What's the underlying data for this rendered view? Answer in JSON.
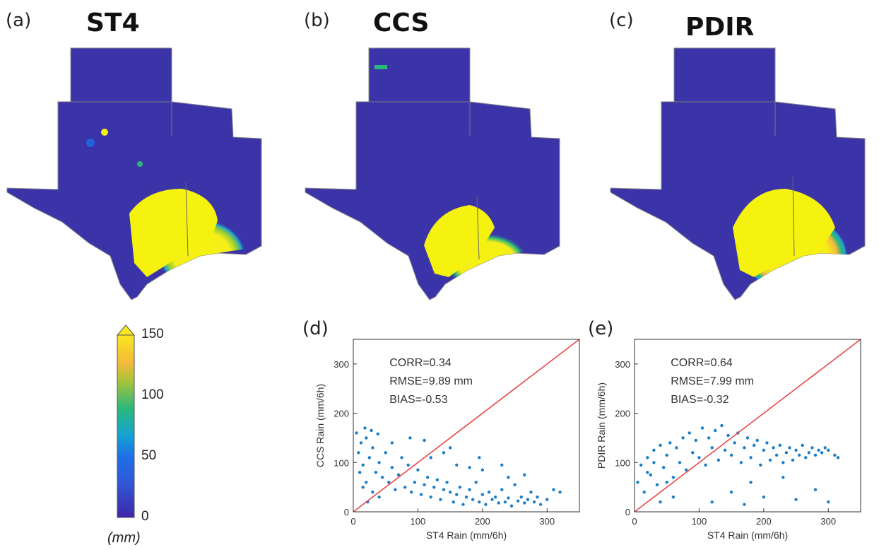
{
  "panels": {
    "a": {
      "letter": "(a)",
      "title": "ST4"
    },
    "b": {
      "letter": "(b)",
      "title": "CCS"
    },
    "c": {
      "letter": "(c)",
      "title": "PDIR"
    },
    "d": {
      "letter": "(d)"
    },
    "e": {
      "letter": "(e)"
    }
  },
  "colorbar": {
    "ticks": [
      "150",
      "100",
      "50",
      "0"
    ],
    "unit": "(mm)",
    "colors": [
      "#3e27a8",
      "#1f6ee8",
      "#14a3d4",
      "#2cb87a",
      "#a9c43a",
      "#f7b93a",
      "#f8e621"
    ]
  },
  "colors": {
    "scatter_point": "#1a7fc8",
    "reference_line": "#e8474a",
    "map_base": "#3b34a8",
    "map_heavy": "#f6f20f"
  },
  "chart_data": [
    {
      "type": "scatter",
      "panel": "(d)",
      "xlabel": "ST4 Rain (mm/6h)",
      "ylabel": "CCS Rain (mm/6h)",
      "xlim": [
        0,
        350
      ],
      "ylim": [
        0,
        350
      ],
      "xticks": [
        0,
        100,
        200,
        300
      ],
      "yticks": [
        0,
        100,
        200,
        300
      ],
      "tick_labels_x": [
        "0",
        "100",
        "200",
        "300"
      ],
      "tick_labels_y": [
        "0",
        "100",
        "200",
        "300"
      ],
      "annotations": [
        "CORR=0.34",
        "RMSE=9.89 mm",
        "BIAS=-0.53"
      ],
      "reference_line": {
        "x": [
          0,
          350
        ],
        "y": [
          0,
          350
        ]
      },
      "points": [
        [
          5,
          160
        ],
        [
          8,
          120
        ],
        [
          12,
          140
        ],
        [
          15,
          95
        ],
        [
          20,
          150
        ],
        [
          25,
          110
        ],
        [
          30,
          130
        ],
        [
          35,
          80
        ],
        [
          40,
          100
        ],
        [
          45,
          70
        ],
        [
          50,
          120
        ],
        [
          55,
          60
        ],
        [
          60,
          90
        ],
        [
          65,
          45
        ],
        [
          70,
          75
        ],
        [
          75,
          110
        ],
        [
          80,
          50
        ],
        [
          85,
          95
        ],
        [
          90,
          40
        ],
        [
          95,
          60
        ],
        [
          100,
          85
        ],
        [
          105,
          35
        ],
        [
          110,
          55
        ],
        [
          115,
          70
        ],
        [
          120,
          30
        ],
        [
          125,
          50
        ],
        [
          130,
          65
        ],
        [
          135,
          25
        ],
        [
          140,
          45
        ],
        [
          145,
          60
        ],
        [
          150,
          40
        ],
        [
          155,
          20
        ],
        [
          160,
          35
        ],
        [
          165,
          50
        ],
        [
          170,
          15
        ],
        [
          175,
          30
        ],
        [
          180,
          45
        ],
        [
          185,
          25
        ],
        [
          190,
          60
        ],
        [
          195,
          20
        ],
        [
          200,
          35
        ],
        [
          205,
          15
        ],
        [
          210,
          40
        ],
        [
          215,
          25
        ],
        [
          220,
          30
        ],
        [
          225,
          18
        ],
        [
          230,
          45
        ],
        [
          235,
          20
        ],
        [
          240,
          28
        ],
        [
          245,
          12
        ],
        [
          250,
          55
        ],
        [
          255,
          22
        ],
        [
          260,
          30
        ],
        [
          265,
          18
        ],
        [
          270,
          25
        ],
        [
          275,
          40
        ],
        [
          280,
          20
        ],
        [
          285,
          30
        ],
        [
          290,
          15
        ],
        [
          300,
          25
        ],
        [
          310,
          45
        ],
        [
          320,
          40
        ],
        [
          18,
          170
        ],
        [
          28,
          165
        ],
        [
          38,
          158
        ],
        [
          60,
          140
        ],
        [
          88,
          150
        ],
        [
          110,
          145
        ],
        [
          140,
          120
        ],
        [
          160,
          95
        ],
        [
          200,
          85
        ],
        [
          240,
          70
        ],
        [
          265,
          75
        ],
        [
          195,
          110
        ],
        [
          120,
          110
        ],
        [
          150,
          130
        ],
        [
          180,
          90
        ],
        [
          230,
          95
        ],
        [
          20,
          60
        ],
        [
          30,
          40
        ],
        [
          40,
          30
        ],
        [
          10,
          80
        ],
        [
          15,
          50
        ],
        [
          22,
          20
        ]
      ]
    },
    {
      "type": "scatter",
      "panel": "(e)",
      "xlabel": "ST4 Rain (mm/6h)",
      "ylabel": "PDIR Rain (mm/6h)",
      "xlim": [
        0,
        350
      ],
      "ylim": [
        0,
        350
      ],
      "xticks": [
        0,
        100,
        200,
        300
      ],
      "yticks": [
        0,
        100,
        200,
        300
      ],
      "tick_labels_x": [
        "0",
        "100",
        "200",
        "300"
      ],
      "tick_labels_y": [
        "0",
        "100",
        "200",
        "300"
      ],
      "annotations": [
        "CORR=0.64",
        "RMSE=7.99 mm",
        "BIAS=-0.32"
      ],
      "reference_line": {
        "x": [
          0,
          350
        ],
        "y": [
          0,
          350
        ]
      },
      "points": [
        [
          5,
          60
        ],
        [
          10,
          95
        ],
        [
          15,
          40
        ],
        [
          20,
          110
        ],
        [
          25,
          75
        ],
        [
          30,
          125
        ],
        [
          35,
          55
        ],
        [
          40,
          135
        ],
        [
          45,
          90
        ],
        [
          50,
          115
        ],
        [
          55,
          140
        ],
        [
          60,
          70
        ],
        [
          65,
          130
        ],
        [
          70,
          100
        ],
        [
          75,
          150
        ],
        [
          80,
          85
        ],
        [
          85,
          160
        ],
        [
          90,
          120
        ],
        [
          95,
          145
        ],
        [
          100,
          110
        ],
        [
          105,
          170
        ],
        [
          110,
          95
        ],
        [
          115,
          150
        ],
        [
          120,
          130
        ],
        [
          125,
          165
        ],
        [
          130,
          105
        ],
        [
          135,
          175
        ],
        [
          140,
          125
        ],
        [
          145,
          155
        ],
        [
          150,
          115
        ],
        [
          155,
          140
        ],
        [
          160,
          160
        ],
        [
          165,
          100
        ],
        [
          170,
          130
        ],
        [
          175,
          150
        ],
        [
          180,
          110
        ],
        [
          185,
          135
        ],
        [
          190,
          145
        ],
        [
          195,
          95
        ],
        [
          200,
          125
        ],
        [
          205,
          140
        ],
        [
          210,
          105
        ],
        [
          215,
          130
        ],
        [
          220,
          115
        ],
        [
          225,
          135
        ],
        [
          230,
          100
        ],
        [
          235,
          120
        ],
        [
          240,
          130
        ],
        [
          245,
          105
        ],
        [
          250,
          125
        ],
        [
          255,
          115
        ],
        [
          260,
          135
        ],
        [
          265,
          110
        ],
        [
          270,
          120
        ],
        [
          275,
          130
        ],
        [
          280,
          115
        ],
        [
          285,
          125
        ],
        [
          290,
          120
        ],
        [
          295,
          130
        ],
        [
          300,
          125
        ],
        [
          310,
          115
        ],
        [
          315,
          110
        ],
        [
          150,
          40
        ],
        [
          200,
          30
        ],
        [
          250,
          25
        ],
        [
          180,
          60
        ],
        [
          230,
          70
        ],
        [
          280,
          45
        ],
        [
          120,
          20
        ],
        [
          170,
          15
        ],
        [
          300,
          20
        ],
        [
          60,
          30
        ],
        [
          40,
          20
        ],
        [
          30,
          100
        ],
        [
          20,
          80
        ],
        [
          50,
          60
        ]
      ]
    }
  ]
}
